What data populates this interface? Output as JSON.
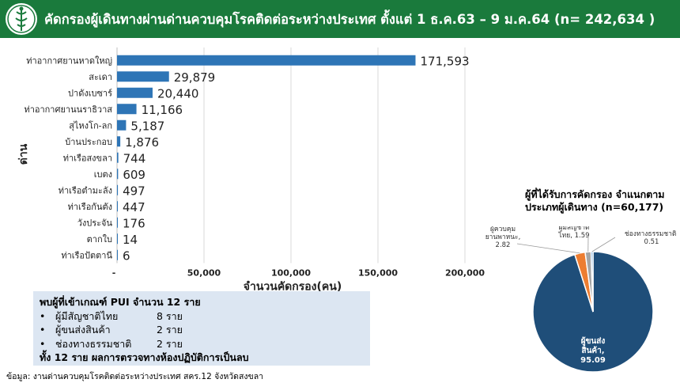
{
  "header": {
    "title": "คัดกรองผู้เดินทางผ่านด่านควบคุมโรคติดต่อระหว่างประเทศ ตั้งแต่ 1 ธ.ค.63 – 9 ม.ค.64 (n= 242,634 )"
  },
  "pui_box": {
    "heading": "พบผู้ที่เข้าเกณฑ์ PUI จำนวน 12 ราย",
    "items": [
      {
        "bullet": "•",
        "label": "ผู้มีสัญชาติไทย",
        "value": "8 ราย"
      },
      {
        "bullet": "•",
        "label": "ผู้ขนส่งสินค้า",
        "value": "2 ราย"
      },
      {
        "bullet": "•",
        "label": "ช่องทางธรรมชาติ",
        "value": "2 ราย"
      }
    ],
    "summary": "ทั้ง 12 ราย ผลการตรวจทางห้องปฏิบัติการเป็นลบ"
  },
  "footnote": "ข้อมูล: งานด่านควบคุมโรคติดต่อระหว่างประเทศ สคร.12 จังหวัดสงขลา",
  "colors": {
    "header_bg": "#1a7a3c",
    "bar": "#2e75b6",
    "pie_main": "#1f4e79",
    "pie_orange": "#ed7d31",
    "pie_gray": "#a5a5a5"
  },
  "chart_data": [
    {
      "type": "bar",
      "orientation": "horizontal",
      "ylabel": "ด่าน",
      "xlabel": "จำนวนคัดกรอง(คน)",
      "categories": [
        "ท่าอากาศยานหาดใหญ่",
        "สะเดา",
        "ปาดังเบซาร์",
        "ท่าอากาศยานนราธิวาส",
        "สุไหงโก-ลก",
        "บ้านประกอบ",
        "ท่าเรือสงขลา",
        "เบตง",
        "ท่าเรือตำมะลัง",
        "ท่าเรือกันตัง",
        "วังประจัน",
        "ตากใบ",
        "ท่าเรือปัตตานี"
      ],
      "values": [
        171593,
        29879,
        20440,
        11166,
        5187,
        1876,
        744,
        609,
        497,
        447,
        176,
        14,
        6
      ],
      "value_labels": [
        "171,593",
        "29,879",
        "20,440",
        "11,166",
        "5,187",
        "1,876",
        "744",
        "609",
        "497",
        "447",
        "176",
        "14",
        "6"
      ],
      "x_ticks": [
        "-",
        "50,000",
        "100,000",
        "150,000",
        "200,000"
      ],
      "xlim": [
        0,
        200000
      ],
      "grid": true
    },
    {
      "type": "pie",
      "title": "ผู้ที่ได้รับการคัดกรอง จำแนกตามประเภทผู้เดินทาง (n=60,177)",
      "slices": [
        {
          "label": "ผู้ขนส่งสินค้า",
          "value": 95.09,
          "display": "95.09",
          "color": "#1f4e79"
        },
        {
          "label": "ผู้ควบคุมยานพาหนะ",
          "value": 2.82,
          "display": "2.82",
          "color": "#ed7d31"
        },
        {
          "label": "ผู้มีสัญชาติไทย",
          "value": 1.59,
          "display": "1.59",
          "color": "#a5a5a5"
        },
        {
          "label": "ช่องทางธรรมชาติ",
          "value": 0.51,
          "display": "0.51",
          "color": "#5b9bd5"
        }
      ]
    }
  ]
}
